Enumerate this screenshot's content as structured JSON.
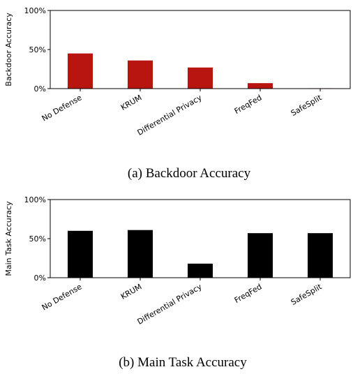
{
  "chart_data": [
    {
      "type": "bar",
      "categories": [
        "No Defense",
        "KRUM",
        "Differential Privacy",
        "FreqFed",
        "SafeSplit"
      ],
      "values": [
        45,
        36,
        27,
        7,
        0.5
      ],
      "ylabel": "Backdoor Accuracy",
      "yticks": [
        "0%",
        "50%",
        "100%"
      ],
      "ylim": [
        0,
        100
      ],
      "bar_color": "#b81410",
      "caption": "(a) Backdoor Accuracy",
      "grid": false
    },
    {
      "type": "bar",
      "categories": [
        "No Defense",
        "KRUM",
        "Differential Privacy",
        "FreqFed",
        "SafeSplit"
      ],
      "values": [
        60,
        61,
        18,
        57,
        57
      ],
      "ylabel": "Main Task Accuracy",
      "yticks": [
        "0%",
        "50%",
        "100%"
      ],
      "ylim": [
        0,
        100
      ],
      "bar_color": "#000000",
      "caption": "(b) Main Task Accuracy",
      "grid": false
    }
  ]
}
